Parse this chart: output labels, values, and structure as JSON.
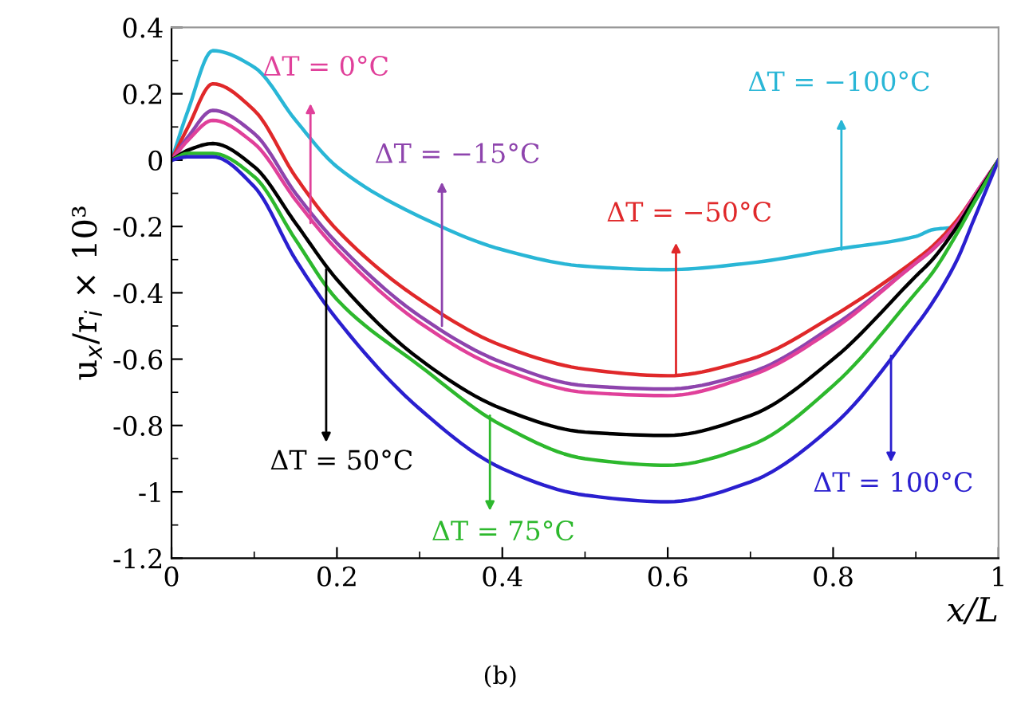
{
  "chart_data": {
    "type": "line",
    "xlabel": "x/L",
    "ylabel": "u$_{x}$/r$_{i}$ × 10³",
    "x": [
      0,
      0.02,
      0.05,
      0.1,
      0.15,
      0.2,
      0.3,
      0.4,
      0.5,
      0.6,
      0.7,
      0.8,
      0.9,
      0.92,
      0.95,
      0.97,
      1.0
    ],
    "series": [
      {
        "color": "#29b6d6",
        "values": [
          0,
          0.15,
          0.33,
          0.28,
          0.12,
          -0.02,
          -0.17,
          -0.27,
          -0.32,
          -0.33,
          -0.31,
          -0.27,
          -0.23,
          -0.21,
          -0.2,
          -0.13,
          0
        ]
      },
      {
        "color": "#e0282a",
        "values": [
          0,
          0.1,
          0.23,
          0.15,
          -0.05,
          -0.21,
          -0.42,
          -0.56,
          -0.63,
          -0.65,
          -0.6,
          -0.47,
          -0.3,
          -0.26,
          -0.18,
          -0.11,
          0
        ]
      },
      {
        "color": "#8e44ad",
        "values": [
          0,
          0.07,
          0.15,
          0.08,
          -0.1,
          -0.25,
          -0.47,
          -0.61,
          -0.68,
          -0.69,
          -0.64,
          -0.5,
          -0.31,
          -0.27,
          -0.19,
          -0.11,
          0
        ]
      },
      {
        "color": "#e0409a",
        "values": [
          0,
          0.06,
          0.12,
          0.05,
          -0.12,
          -0.27,
          -0.49,
          -0.63,
          -0.7,
          -0.71,
          -0.65,
          -0.51,
          -0.31,
          -0.27,
          -0.19,
          -0.11,
          0
        ]
      },
      {
        "color": "#000000",
        "values": [
          0,
          0.03,
          0.05,
          -0.02,
          -0.19,
          -0.36,
          -0.6,
          -0.75,
          -0.82,
          -0.83,
          -0.77,
          -0.6,
          -0.35,
          -0.3,
          -0.2,
          -0.12,
          0
        ]
      },
      {
        "color": "#2db82d",
        "values": [
          0,
          0.02,
          0.02,
          -0.05,
          -0.24,
          -0.42,
          -0.62,
          -0.8,
          -0.9,
          -0.92,
          -0.86,
          -0.68,
          -0.4,
          -0.34,
          -0.22,
          -0.13,
          0
        ]
      },
      {
        "color": "#2a1fcf",
        "values": [
          0,
          0.01,
          0.01,
          -0.08,
          -0.3,
          -0.48,
          -0.75,
          -0.93,
          -1.01,
          -1.03,
          -0.97,
          -0.8,
          -0.5,
          -0.43,
          -0.3,
          -0.18,
          0
        ]
      }
    ],
    "xlim": [
      0,
      1
    ],
    "ylim": [
      -1.2,
      0.4
    ],
    "xticks": [
      0,
      0.2,
      0.4,
      0.6,
      0.8,
      1
    ],
    "yticks": [
      0.4,
      0.2,
      0,
      {
        "value": -0.2,
        "label": "-0.2"
      },
      {
        "value": -0.4,
        "label": "-0.4"
      },
      {
        "value": -0.6,
        "label": "-0.6"
      },
      {
        "value": -0.8,
        "label": "-0.8"
      },
      {
        "value": -1,
        "label": "-1"
      },
      {
        "value": -1.2,
        "label": "-1.2"
      }
    ],
    "grid": false,
    "legend": false,
    "marker": "none",
    "line_style": "solid",
    "annotations": [
      {
        "text": "ΔT = 0°C",
        "x": 0.168,
        "y": -0.19
      },
      {
        "text": "ΔT = −15°C",
        "x": 0.327,
        "y": -0.5
      },
      {
        "text": "ΔT = −50°C",
        "x": 0.61,
        "y": -0.65
      },
      {
        "text": "ΔT = −100°C",
        "x": 0.81,
        "y": -0.27
      },
      {
        "text": "ΔT = 50°C",
        "x": 0.187,
        "y": -0.33
      },
      {
        "text": "ΔT = 75°C",
        "x": 0.385,
        "y": -0.77
      },
      {
        "text": "ΔT = 100°C",
        "x": 0.87,
        "y": -0.59
      },
      "(b)"
    ]
  }
}
